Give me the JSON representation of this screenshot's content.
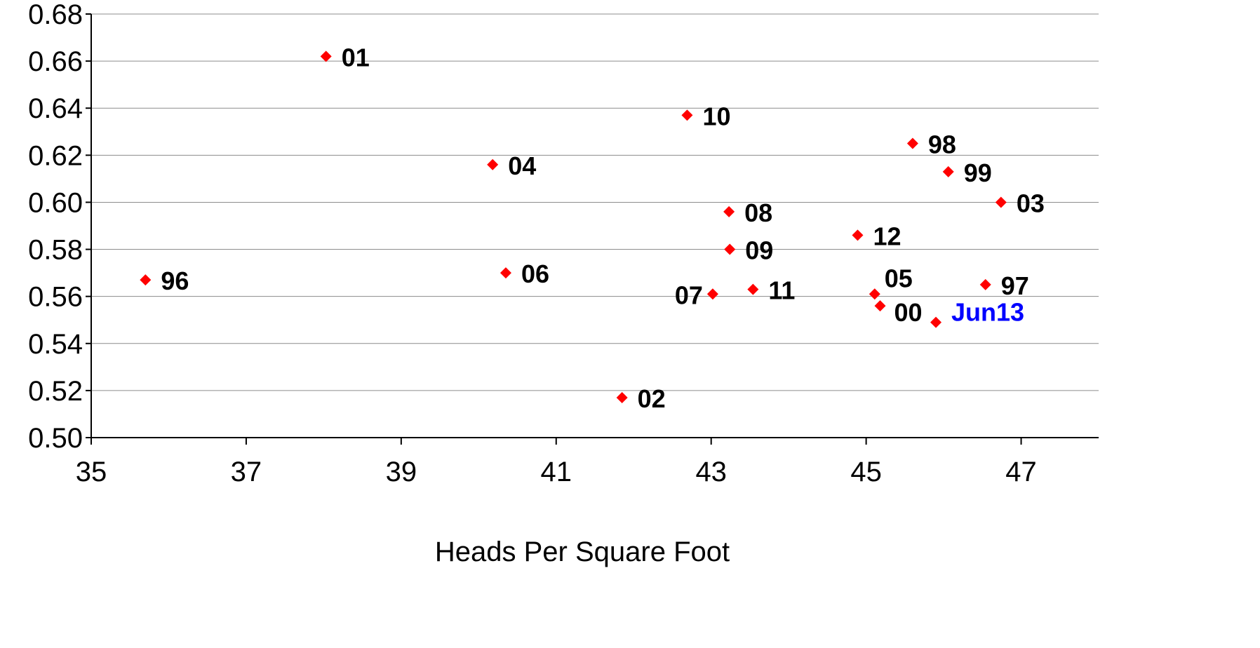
{
  "chart_data": {
    "type": "scatter",
    "title": "",
    "xlabel": "Heads Per Square Foot",
    "ylabel": "",
    "xlim": [
      35,
      48
    ],
    "ylim": [
      0.5,
      0.68
    ],
    "x_ticks": [
      {
        "value": 35,
        "label": "35"
      },
      {
        "value": 37,
        "label": "37"
      },
      {
        "value": 39,
        "label": "39"
      },
      {
        "value": 41,
        "label": "41"
      },
      {
        "value": 43,
        "label": "43"
      },
      {
        "value": 45,
        "label": "45"
      },
      {
        "value": 47,
        "label": "47"
      }
    ],
    "y_ticks": [
      {
        "value": 0.5,
        "label": "0.50"
      },
      {
        "value": 0.52,
        "label": "0.52"
      },
      {
        "value": 0.54,
        "label": "0.54"
      },
      {
        "value": 0.56,
        "label": "0.56"
      },
      {
        "value": 0.58,
        "label": "0.58"
      },
      {
        "value": 0.6,
        "label": "0.60"
      },
      {
        "value": 0.62,
        "label": "0.62"
      },
      {
        "value": 0.64,
        "label": "0.64"
      },
      {
        "value": 0.66,
        "label": "0.66"
      },
      {
        "value": 0.68,
        "label": "0.68"
      }
    ],
    "grid": "horizontal",
    "marker": "diamond",
    "marker_color": "#ff0000",
    "label_color": "#000000",
    "highlight_label_color": "#0000ff",
    "points": [
      {
        "label": "96",
        "x": 35.7,
        "y": 0.567
      },
      {
        "label": "01",
        "x": 38.03,
        "y": 0.662
      },
      {
        "label": "04",
        "x": 40.18,
        "y": 0.616
      },
      {
        "label": "06",
        "x": 40.35,
        "y": 0.57
      },
      {
        "label": "02",
        "x": 41.85,
        "y": 0.517
      },
      {
        "label": "10",
        "x": 42.69,
        "y": 0.637
      },
      {
        "label": "07",
        "x": 43.02,
        "y": 0.561
      },
      {
        "label": "08",
        "x": 43.23,
        "y": 0.596
      },
      {
        "label": "09",
        "x": 43.24,
        "y": 0.58
      },
      {
        "label": "11",
        "x": 43.54,
        "y": 0.563
      },
      {
        "label": "12",
        "x": 44.89,
        "y": 0.586
      },
      {
        "label": "05",
        "x": 45.11,
        "y": 0.561
      },
      {
        "label": "00",
        "x": 45.18,
        "y": 0.556
      },
      {
        "label": "98",
        "x": 45.6,
        "y": 0.625
      },
      {
        "label": "Jun13",
        "x": 45.9,
        "y": 0.549,
        "highlight": true
      },
      {
        "label": "99",
        "x": 46.06,
        "y": 0.613
      },
      {
        "label": "97",
        "x": 46.54,
        "y": 0.565
      },
      {
        "label": "03",
        "x": 46.74,
        "y": 0.6
      }
    ]
  }
}
